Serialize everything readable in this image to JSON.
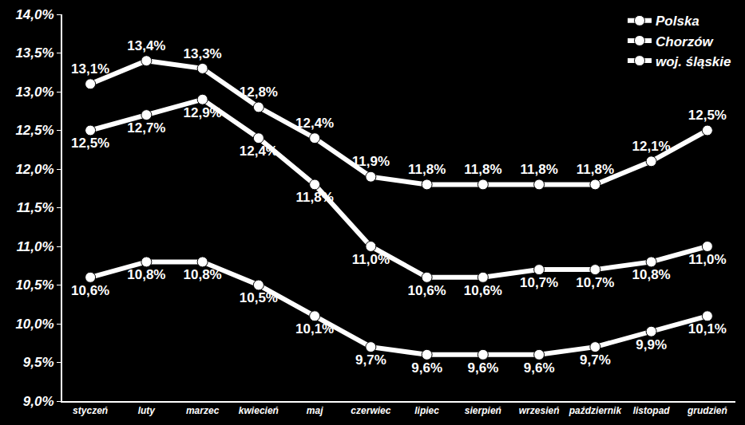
{
  "chart_data": {
    "type": "line",
    "categories": [
      "styczeń",
      "luty",
      "marzec",
      "kwiecień",
      "maj",
      "czerwiec",
      "lipiec",
      "sierpień",
      "wrzesień",
      "październik",
      "listopad",
      "grudzień"
    ],
    "series": [
      {
        "name": "Polska",
        "color": "#ffffff",
        "values": [
          13.1,
          13.4,
          13.3,
          12.8,
          12.4,
          11.9,
          11.8,
          11.8,
          11.8,
          11.8,
          12.1,
          12.5
        ],
        "value_labels": [
          "13,1%",
          "13,4%",
          "13,3%",
          "12,8%",
          "12,4%",
          "11,9%",
          "11,8%",
          "11,8%",
          "11,8%",
          "11,8%",
          "12,1%",
          "12,5%"
        ]
      },
      {
        "name": "Chorzów",
        "color": "#ffffff",
        "values": [
          12.5,
          12.7,
          12.9,
          12.4,
          11.8,
          11.0,
          10.6,
          10.6,
          10.7,
          10.7,
          10.8,
          11.0
        ],
        "value_labels": [
          "12,5%",
          "12,7%",
          "12,9%",
          "12,4%",
          "11,8%",
          "11,0%",
          "10,6%",
          "10,6%",
          "10,7%",
          "10,7%",
          "10,8%",
          "11,0%"
        ]
      },
      {
        "name": "woj. śląskie",
        "color": "#ffffff",
        "values": [
          10.6,
          10.8,
          10.8,
          10.5,
          10.1,
          9.7,
          9.6,
          9.6,
          9.6,
          9.7,
          9.9,
          10.1
        ],
        "value_labels": [
          "10,6%",
          "10,8%",
          "10,8%",
          "10,5%",
          "10,1%",
          "9,7%",
          "9,6%",
          "9,6%",
          "9,6%",
          "9,7%",
          "9,9%",
          "10,1%"
        ]
      }
    ],
    "ylim": [
      9,
      14
    ],
    "yticks": [
      {
        "value": 9,
        "label": "9,0%"
      },
      {
        "value": 9.5,
        "label": "9,5%"
      },
      {
        "value": 10,
        "label": "10,0%"
      },
      {
        "value": 10.5,
        "label": "10,5%"
      },
      {
        "value": 11,
        "label": "11,0%"
      },
      {
        "value": 11.5,
        "label": "11,5%"
      },
      {
        "value": 12,
        "label": "12,0%"
      },
      {
        "value": 12.5,
        "label": "12,5%"
      },
      {
        "value": 13,
        "label": "13,0%"
      },
      {
        "value": 13.5,
        "label": "13,5%"
      },
      {
        "value": 14,
        "label": "14,0%"
      }
    ],
    "grid": false,
    "legend": "top right",
    "data_labels": true,
    "marker": "circle",
    "line_style": "solid"
  }
}
